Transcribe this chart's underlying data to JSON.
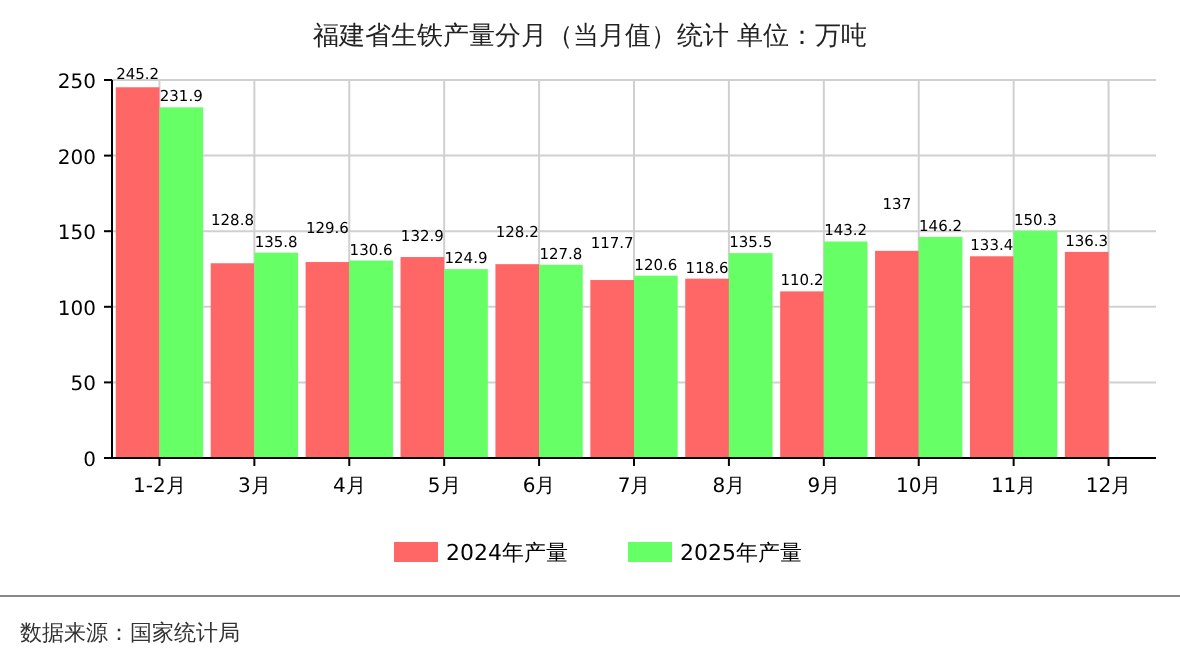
{
  "chart_data": {
    "type": "bar",
    "title": "福建省生铁产量分月（当月值）统计 单位：万吨",
    "categories": [
      "1-2月",
      "3月",
      "4月",
      "5月",
      "6月",
      "7月",
      "8月",
      "9月",
      "10月",
      "11月",
      "12月"
    ],
    "series": [
      {
        "name": "2024年产量",
        "color": "#ff6666",
        "values": [
          245.2,
          128.8,
          129.6,
          132.9,
          128.2,
          117.7,
          118.6,
          110.2,
          137,
          133.4,
          136.3
        ]
      },
      {
        "name": "2025年产量",
        "color": "#66ff66",
        "values": [
          231.9,
          135.8,
          130.6,
          124.9,
          127.8,
          120.6,
          135.5,
          143.2,
          146.2,
          150.3,
          null
        ]
      }
    ],
    "ylim": [
      0,
      250
    ],
    "yticks": [
      0,
      50,
      100,
      150,
      200,
      250
    ],
    "grid": true,
    "legend": "bottom",
    "data_labels": true,
    "annotations": [
      "数据来源：国家统计局"
    ]
  }
}
